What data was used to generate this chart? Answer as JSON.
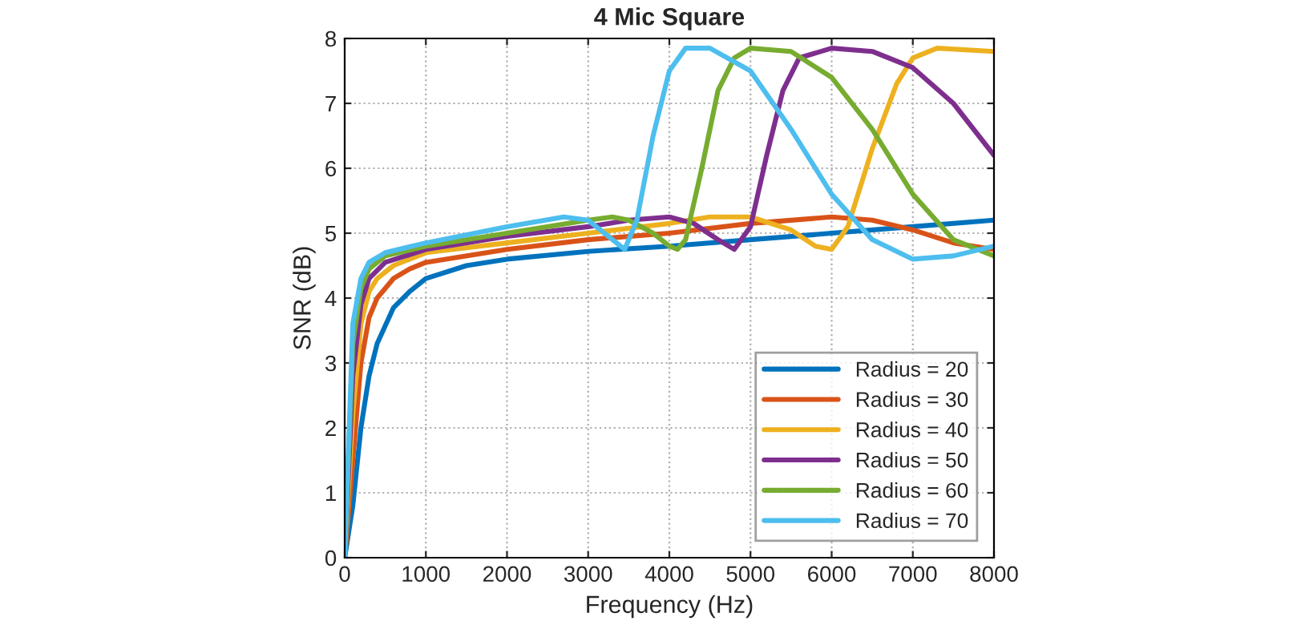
{
  "chart_data": {
    "type": "line",
    "title": "4 Mic Square",
    "xlabel": "Frequency (Hz)",
    "ylabel": "SNR (dB)",
    "xlim": [
      0,
      8000
    ],
    "xticks": [
      0,
      1000,
      2000,
      3000,
      4000,
      5000,
      6000,
      7000,
      8000
    ],
    "ylim": [
      0,
      8
    ],
    "yticks": [
      0,
      1,
      2,
      3,
      4,
      5,
      6,
      7,
      8
    ],
    "grid": true,
    "legend": "bottom right",
    "line_style": "solid",
    "series": [
      {
        "name": "Radius = 20",
        "color": "#0072bd",
        "x": [
          0,
          100,
          200,
          300,
          400,
          600,
          800,
          1000,
          1500,
          2000,
          3000,
          4000,
          5000,
          6000,
          7000,
          8000
        ],
        "values": [
          0,
          0.8,
          2.0,
          2.8,
          3.3,
          3.85,
          4.1,
          4.3,
          4.5,
          4.6,
          4.72,
          4.8,
          4.9,
          5.0,
          5.1,
          5.2
        ]
      },
      {
        "name": "Radius = 30",
        "color": "#d95319",
        "x": [
          0,
          100,
          200,
          300,
          400,
          600,
          800,
          1000,
          2000,
          3000,
          4000,
          5000,
          6000,
          6500,
          7000,
          7500,
          8000
        ],
        "values": [
          0,
          1.5,
          3.0,
          3.7,
          4.0,
          4.3,
          4.45,
          4.55,
          4.75,
          4.9,
          5.0,
          5.15,
          5.25,
          5.2,
          5.05,
          4.85,
          4.75
        ]
      },
      {
        "name": "Radius = 40",
        "color": "#edb120",
        "x": [
          0,
          100,
          200,
          300,
          400,
          600,
          1000,
          2000,
          3000,
          4000,
          4500,
          5000,
          5500,
          5800,
          6000,
          6200,
          6500,
          6800,
          7000,
          7300,
          8000
        ],
        "values": [
          0,
          2.2,
          3.6,
          4.1,
          4.3,
          4.5,
          4.7,
          4.85,
          5.0,
          5.15,
          5.25,
          5.25,
          5.05,
          4.8,
          4.75,
          5.1,
          6.3,
          7.3,
          7.7,
          7.85,
          7.8
        ]
      },
      {
        "name": "Radius = 50",
        "color": "#7e2f8e",
        "x": [
          0,
          100,
          200,
          300,
          500,
          1000,
          2000,
          3000,
          3500,
          4000,
          4300,
          4600,
          4800,
          5000,
          5200,
          5400,
          5600,
          6000,
          6500,
          7000,
          7500,
          8000
        ],
        "values": [
          0,
          2.8,
          3.9,
          4.3,
          4.55,
          4.75,
          4.95,
          5.1,
          5.2,
          5.25,
          5.15,
          4.9,
          4.75,
          5.1,
          6.2,
          7.2,
          7.7,
          7.85,
          7.8,
          7.55,
          7.0,
          6.2
        ]
      },
      {
        "name": "Radius = 60",
        "color": "#77ac30",
        "x": [
          0,
          100,
          200,
          300,
          500,
          1000,
          2000,
          3000,
          3300,
          3500,
          3800,
          4000,
          4100,
          4200,
          4400,
          4600,
          4800,
          5000,
          5500,
          6000,
          6500,
          7000,
          7500,
          8000
        ],
        "values": [
          0,
          3.3,
          4.15,
          4.45,
          4.65,
          4.8,
          5.0,
          5.2,
          5.25,
          5.2,
          5.0,
          4.8,
          4.75,
          4.9,
          6.0,
          7.2,
          7.7,
          7.85,
          7.8,
          7.4,
          6.6,
          5.6,
          4.9,
          4.65
        ]
      },
      {
        "name": "Radius = 70",
        "color": "#4dbeee",
        "x": [
          0,
          100,
          200,
          300,
          500,
          1000,
          2000,
          2700,
          3000,
          3300,
          3450,
          3600,
          3800,
          4000,
          4200,
          4500,
          5000,
          5500,
          6000,
          6500,
          7000,
          7500,
          8000
        ],
        "values": [
          0,
          3.6,
          4.3,
          4.55,
          4.7,
          4.85,
          5.1,
          5.25,
          5.2,
          4.9,
          4.75,
          5.2,
          6.5,
          7.5,
          7.85,
          7.85,
          7.5,
          6.6,
          5.6,
          4.9,
          4.6,
          4.65,
          4.8
        ]
      }
    ]
  }
}
